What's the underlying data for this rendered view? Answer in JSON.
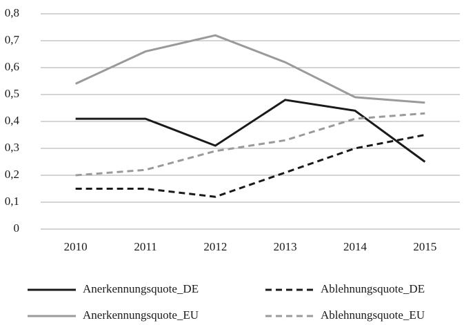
{
  "chart_data": {
    "type": "line",
    "categories": [
      "2010",
      "2011",
      "2012",
      "2013",
      "2014",
      "2015"
    ],
    "series": [
      {
        "name": "Anerkennungsquote_DE",
        "color": "#1a1a1a",
        "dashed": false,
        "values": [
          0.41,
          0.41,
          0.31,
          0.48,
          0.44,
          0.25
        ]
      },
      {
        "name": "Ablehnungsquote_DE",
        "color": "#1a1a1a",
        "dashed": true,
        "values": [
          0.15,
          0.15,
          0.12,
          0.21,
          0.3,
          0.35
        ]
      },
      {
        "name": "Anerkennungsquote_EU",
        "color": "#9a9a9a",
        "dashed": false,
        "values": [
          0.54,
          0.66,
          0.72,
          0.62,
          0.49,
          0.47
        ]
      },
      {
        "name": "Ablehnungsquote_EU",
        "color": "#9a9a9a",
        "dashed": true,
        "values": [
          0.2,
          0.22,
          0.29,
          0.33,
          0.41,
          0.43
        ]
      }
    ],
    "ylim": [
      0,
      0.8
    ],
    "yticks": [
      0,
      {
        "value": 0.1,
        "label": "0,1"
      },
      {
        "value": 0.2,
        "label": "0,2"
      },
      {
        "value": 0.3,
        "label": "0,3"
      },
      {
        "value": 0.4,
        "label": "0,4"
      },
      {
        "value": 0.5,
        "label": "0,5"
      },
      {
        "value": 0.6,
        "label": "0,6"
      },
      {
        "value": 0.7,
        "label": "0,7"
      },
      {
        "value": 0.8,
        "label": "0,8"
      }
    ],
    "grid": true,
    "legend": "bottom"
  }
}
